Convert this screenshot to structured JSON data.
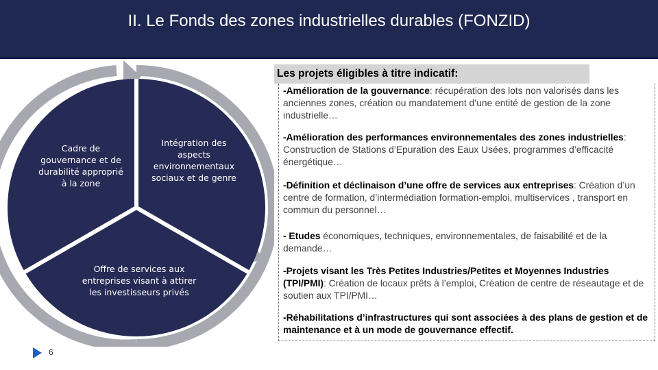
{
  "header": {
    "title": "II. Le Fonds des zones industrielles durables (FONZID)"
  },
  "cycle": {
    "segments": [
      {
        "label": "Cadre de gouvernance et de durabilité approprié à la zone"
      },
      {
        "label": "Intégration des aspects environnementaux sociaux et de genre"
      },
      {
        "label": "Offre de services aux entreprises visant à attirer les investisseurs privés"
      }
    ],
    "colors": {
      "segment": "#252b55",
      "ring": "#a8a8b0",
      "divider": "#ffffff"
    }
  },
  "projects": {
    "title": "Les projets éligibles à titre indicatif:",
    "items": [
      {
        "bold": "-Amélioration de la gouvernance",
        "text": ": récupération des lots non valorisés dans les anciennes zones, création ou mandatement d’une entité de gestion de la zone industrielle…"
      },
      {
        "bold": "-Amélioration des performances environnementales des zones industrielles",
        "text": ": Construction de Stations d’Epuration des Eaux Usées, programmes d’efficacité énergétique…"
      },
      {
        "bold": "-Définition et déclinaison d’une offre de services aux entreprises",
        "text": ": Création d’un centre de formation, d’intermédiation formation-emploi, multiservices , transport en commun du personnel…"
      },
      {
        "bold": "- Etudes",
        "text": " économiques, techniques, environnementales, de faisabilité et de la demande…"
      },
      {
        "bold": "-Projets visant les Très Petites Industries/Petites et Moyennes Industries (TPI/PMI)",
        "text": ": Création de locaux prêts à l’emploi, Création de centre de réseautage et de soutien aux TPI/PMI…"
      },
      {
        "bold": "-Réhabilitations d’infrastructures qui sont associées à des plans de gestion et de maintenance et à un mode de gouvernance effectif.",
        "text": ""
      }
    ]
  },
  "footer": {
    "page_number": "6"
  }
}
